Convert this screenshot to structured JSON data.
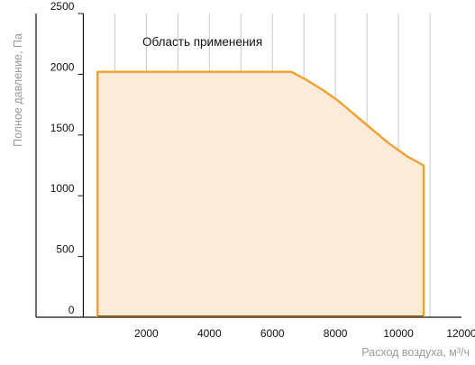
{
  "chart_data": {
    "type": "area",
    "xlabel": "Расход воздуха, м³/ч",
    "ylabel": "Полное давление, Па",
    "annotation": "Область применения",
    "xlim": [
      -1500,
      12000
    ],
    "ylim": [
      0,
      2500
    ],
    "x_ticks": [
      2000,
      4000,
      6000,
      8000,
      10000,
      12000
    ],
    "y_ticks": [
      0,
      500,
      1000,
      1500,
      2000,
      2500
    ],
    "x_tick_labels": [
      "2000",
      "4000",
      "6000",
      "8000",
      "10000",
      "12000"
    ],
    "y_tick_labels": [
      "0",
      "500",
      "1000",
      "1500",
      "2000",
      "2500"
    ],
    "vertical_gridlines": [
      1000,
      2000,
      3000,
      4000,
      5000,
      6000,
      7000,
      8000,
      9000,
      10000,
      11000
    ],
    "grid": true,
    "region": {
      "boundary": [
        {
          "x": 450,
          "y": 0
        },
        {
          "x": 450,
          "y": 2020
        },
        {
          "x": 6600,
          "y": 2020
        },
        {
          "x": 7100,
          "y": 1950
        },
        {
          "x": 7600,
          "y": 1870
        },
        {
          "x": 8100,
          "y": 1780
        },
        {
          "x": 8600,
          "y": 1670
        },
        {
          "x": 9100,
          "y": 1560
        },
        {
          "x": 9700,
          "y": 1430
        },
        {
          "x": 10300,
          "y": 1320
        },
        {
          "x": 10800,
          "y": 1250
        },
        {
          "x": 10800,
          "y": 0
        }
      ]
    },
    "colors": {
      "outline": "#f0a030",
      "fill": "#fdebd9",
      "baseline": "#8a5a1a",
      "grid": "#c9c9c9",
      "axis": "#111111"
    }
  }
}
